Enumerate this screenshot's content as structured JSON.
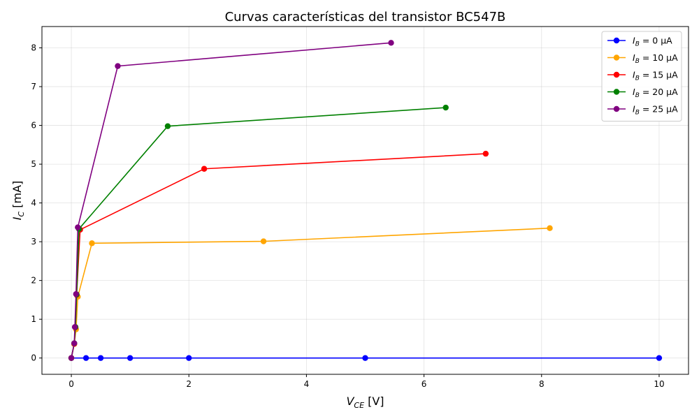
{
  "chart_data": {
    "type": "line",
    "title": "Curvas características del transistor BC547B",
    "xlabel": {
      "main": "V",
      "sub": "CE",
      "unit": " [V]"
    },
    "ylabel": {
      "main": "I",
      "sub": "C",
      "unit": " [mA]"
    },
    "xlim": [
      -0.5,
      10.5
    ],
    "ylim": [
      -0.42,
      8.55
    ],
    "xticks": [
      0,
      2,
      4,
      6,
      8,
      10
    ],
    "xtick_labels": [
      "0",
      "2",
      "4",
      "6",
      "8",
      "10"
    ],
    "yticks": [
      0,
      1,
      2,
      3,
      4,
      5,
      6,
      7,
      8
    ],
    "ytick_labels": [
      "0",
      "1",
      "2",
      "3",
      "4",
      "5",
      "6",
      "7",
      "8"
    ],
    "grid": true,
    "legend_position": "top-right",
    "series": [
      {
        "legend": {
          "main": "I",
          "sub": "B",
          "rest": " = 0 μA"
        },
        "color": "#0000ff",
        "x": [
          0,
          0.25,
          0.5,
          1,
          2,
          5,
          10
        ],
        "y": [
          0,
          0,
          0,
          0,
          0,
          0,
          0
        ]
      },
      {
        "legend": {
          "main": "I",
          "sub": "B",
          "rest": " = 10 μA"
        },
        "color": "#ffa500",
        "x": [
          0,
          0.05,
          0.08,
          0.11,
          0.35,
          3.27,
          8.14
        ],
        "y": [
          0,
          0.36,
          0.74,
          1.58,
          2.96,
          3.01,
          3.35
        ]
      },
      {
        "legend": {
          "main": "I",
          "sub": "B",
          "rest": " = 15 μA"
        },
        "color": "#ff0000",
        "x": [
          0,
          0.05,
          0.07,
          0.09,
          0.15,
          2.26,
          7.05
        ],
        "y": [
          0,
          0.37,
          0.79,
          1.63,
          3.31,
          4.88,
          5.27
        ]
      },
      {
        "legend": {
          "main": "I",
          "sub": "B",
          "rest": " = 20 μA"
        },
        "color": "#008000",
        "x": [
          0,
          0.05,
          0.07,
          0.09,
          0.13,
          1.64,
          6.37
        ],
        "y": [
          0,
          0.38,
          0.8,
          1.64,
          3.33,
          5.98,
          6.46
        ]
      },
      {
        "legend": {
          "main": "I",
          "sub": "B",
          "rest": " = 25 μA"
        },
        "color": "#800080",
        "x": [
          0,
          0.05,
          0.06,
          0.08,
          0.11,
          0.79,
          5.44
        ],
        "y": [
          0,
          0.38,
          0.8,
          1.65,
          3.37,
          7.53,
          8.13
        ]
      }
    ]
  }
}
